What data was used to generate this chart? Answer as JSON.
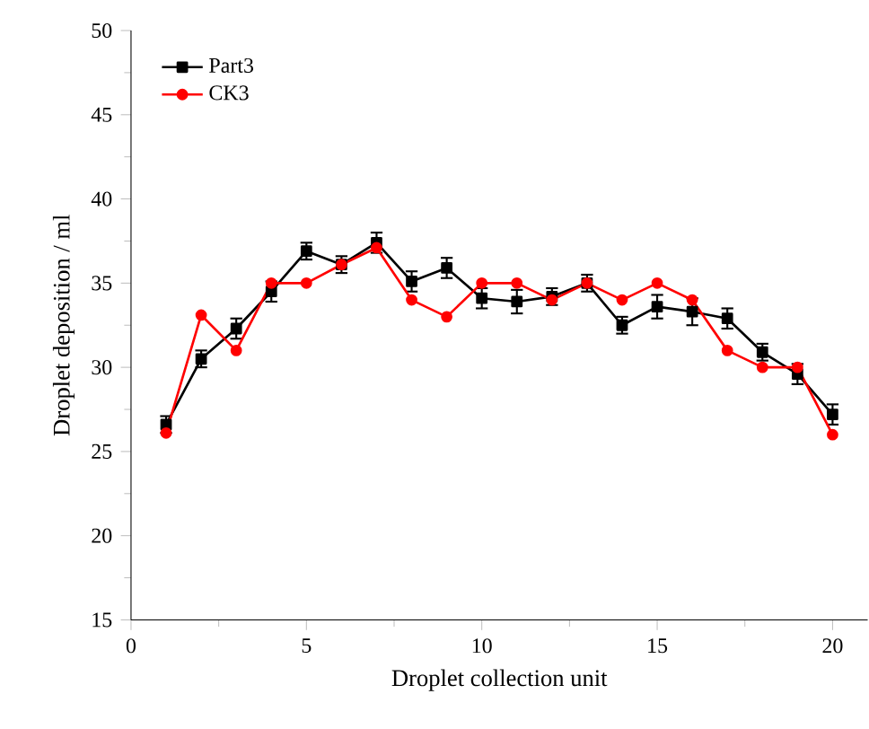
{
  "chart_data": {
    "type": "line",
    "xlabel": "Droplet collection unit",
    "ylabel": "Droplet deposition / ml",
    "x": [
      1,
      2,
      3,
      4,
      5,
      6,
      7,
      8,
      9,
      10,
      11,
      12,
      13,
      14,
      15,
      16,
      17,
      18,
      19,
      20
    ],
    "series": [
      {
        "name": "Part3",
        "color": "#000000",
        "marker": "square",
        "values": [
          26.6,
          30.5,
          32.3,
          34.5,
          36.9,
          36.1,
          37.4,
          35.1,
          35.9,
          34.1,
          33.9,
          34.2,
          35.0,
          32.5,
          33.6,
          33.3,
          32.9,
          30.9,
          29.6,
          27.2
        ],
        "errors": [
          0.5,
          0.5,
          0.6,
          0.6,
          0.5,
          0.5,
          0.6,
          0.6,
          0.6,
          0.6,
          0.7,
          0.5,
          0.5,
          0.5,
          0.7,
          0.8,
          0.6,
          0.5,
          0.6,
          0.6
        ]
      },
      {
        "name": "CK3",
        "color": "#ff0000",
        "marker": "circle",
        "values": [
          26.1,
          33.1,
          31.0,
          35.0,
          35.0,
          36.1,
          37.1,
          34.0,
          33.0,
          35.0,
          35.0,
          34.0,
          35.0,
          34.0,
          35.0,
          34.0,
          31.0,
          30.0,
          30.0,
          26.0
        ]
      }
    ],
    "xlim": [
      0,
      21
    ],
    "ylim": [
      15,
      50
    ],
    "xticks": [
      0,
      5,
      10,
      15,
      20
    ],
    "yticks": [
      15,
      20,
      25,
      30,
      35,
      40,
      45,
      50
    ],
    "legend": "top left",
    "grid": false
  }
}
